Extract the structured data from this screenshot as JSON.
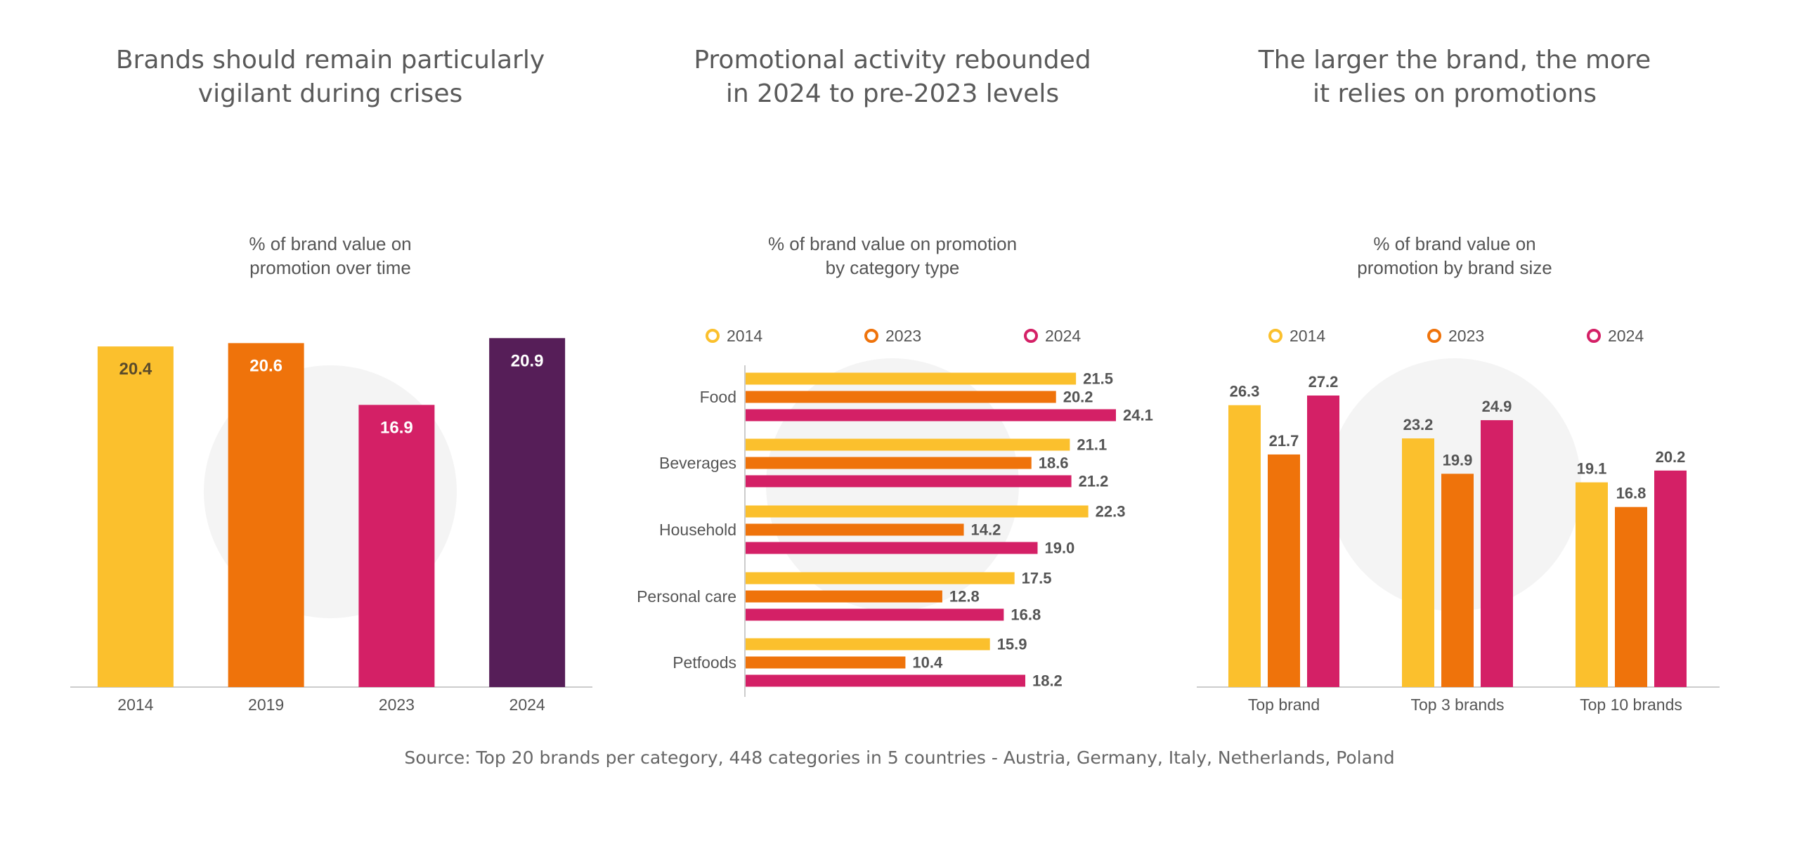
{
  "colors": {
    "y2014": "#fbc02d",
    "y2019": "#ef730b",
    "y2023": "#d42066",
    "y2024": "#561e58",
    "axis": "#cccccc",
    "watermark": "#f4f4f4"
  },
  "panels": [
    {
      "headline": "Brands should remain particularly\nvigilant during crises",
      "subtitle": "% of brand value on\npromotion over time"
    },
    {
      "headline": "Promotional activity rebounded\nin 2024 to pre-2023 levels",
      "subtitle": "% of brand value on promotion\nby category type"
    },
    {
      "headline": "The larger the brand, the more\nit relies on promotions",
      "subtitle": "% of brand value on\npromotion by brand size"
    }
  ],
  "source": "Source: Top 20 brands per category, 448 categories in 5 countries - Austria, Germany, Italy, Netherlands, Poland",
  "chart_data": [
    {
      "type": "bar",
      "title": "% of brand value on promotion over time",
      "categories": [
        "2014",
        "2019",
        "2023",
        "2024"
      ],
      "values": [
        20.4,
        20.6,
        16.9,
        20.9
      ],
      "bar_colors": [
        "#fbc02d",
        "#ef730b",
        "#d42066",
        "#561e58"
      ],
      "ylim": [
        0,
        21.5
      ],
      "grid": false,
      "legend": "none"
    },
    {
      "type": "bar",
      "orientation": "horizontal",
      "title": "% of brand value on promotion by category type",
      "categories": [
        "Food",
        "Beverages",
        "Household",
        "Personal care",
        "Petfoods"
      ],
      "series": [
        {
          "name": "2014",
          "color": "#fbc02d",
          "values": [
            21.5,
            21.1,
            22.3,
            17.5,
            15.9
          ]
        },
        {
          "name": "2023",
          "color": "#ef730b",
          "values": [
            20.2,
            18.6,
            14.2,
            12.8,
            10.4
          ]
        },
        {
          "name": "2024",
          "color": "#d42066",
          "values": [
            24.1,
            21.2,
            19.0,
            16.8,
            18.2
          ]
        }
      ],
      "xlim": [
        0,
        30
      ],
      "grid": false,
      "legend": "top"
    },
    {
      "type": "bar",
      "title": "% of brand value on promotion by brand size",
      "categories": [
        "Top brand",
        "Top 3 brands",
        "Top 10 brands"
      ],
      "series": [
        {
          "name": "2014",
          "color": "#fbc02d",
          "values": [
            26.3,
            23.2,
            19.1
          ]
        },
        {
          "name": "2023",
          "color": "#ef730b",
          "values": [
            21.7,
            19.9,
            16.8
          ]
        },
        {
          "name": "2024",
          "color": "#d42066",
          "values": [
            27.2,
            24.9,
            20.2
          ]
        }
      ],
      "ylim": [
        0,
        33
      ],
      "grid": false,
      "legend": "top"
    }
  ]
}
